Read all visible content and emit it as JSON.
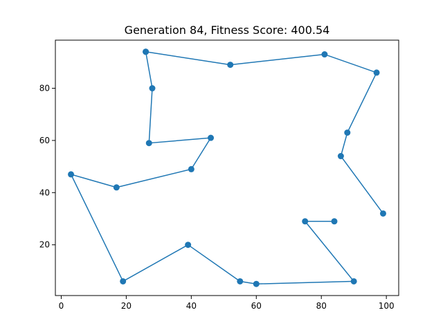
{
  "chart_data": {
    "type": "line",
    "title": "Generation 84, Fitness Score: 400.54",
    "xlabel": "",
    "ylabel": "",
    "xlim": [
      -1.8,
      103.8
    ],
    "ylim": [
      0.55,
      98.45
    ],
    "xticks": [
      0,
      20,
      40,
      60,
      80,
      100
    ],
    "yticks": [
      20,
      40,
      60,
      80
    ],
    "grid": false,
    "color": "#1f77b4",
    "series": [
      {
        "x": [
          26,
          52,
          81,
          97,
          88,
          86,
          99
        ],
        "y": [
          94,
          89,
          93,
          86,
          63,
          54,
          32
        ]
      },
      {
        "x": [
          26,
          28,
          27,
          46,
          40,
          17,
          3,
          19,
          39,
          55,
          60,
          90,
          75,
          84
        ],
        "y": [
          94,
          80,
          59,
          61,
          49,
          42,
          47,
          6,
          20,
          6,
          5,
          6,
          29,
          29
        ]
      }
    ]
  }
}
